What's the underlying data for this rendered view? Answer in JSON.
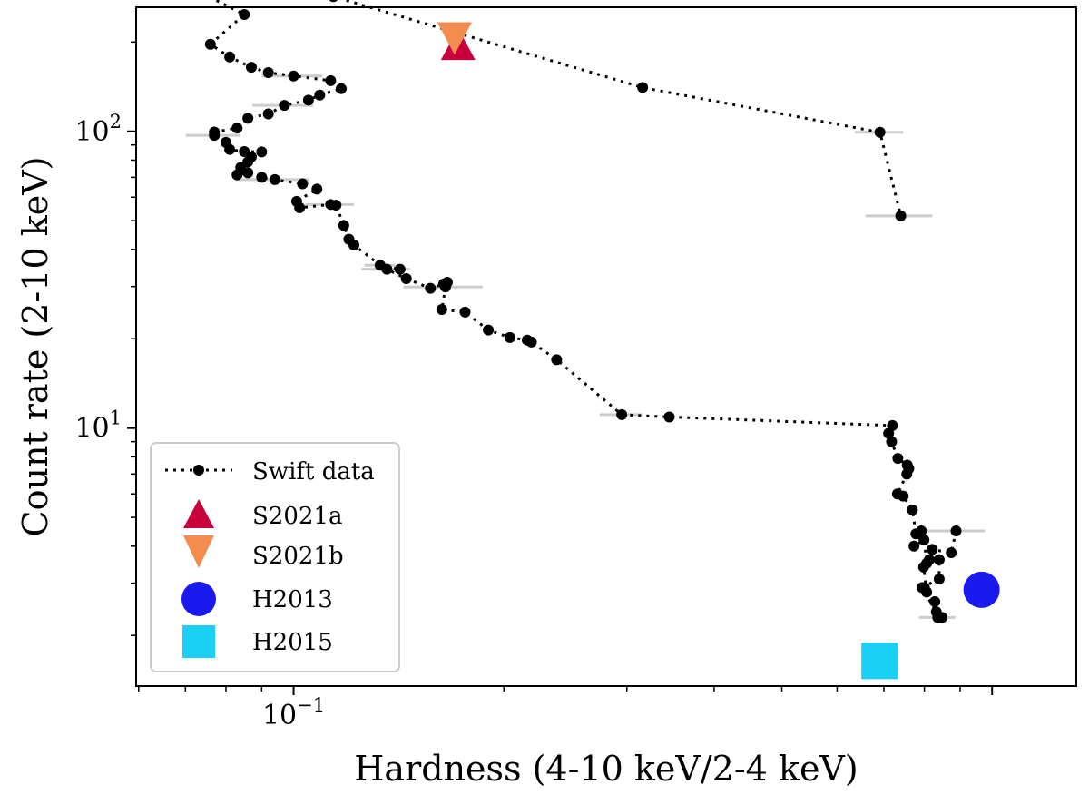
{
  "chart_data": {
    "type": "scatter",
    "xlabel": "Hardness (4-10 keV/2-4 keV)",
    "ylabel": "Count rate (2-10 keV)",
    "x_scale": "log",
    "y_scale": "log",
    "xlim": [
      0.0595,
      1.32
    ],
    "ylim": [
      1.35,
      262
    ],
    "grid": false,
    "legend_position": "lower-left",
    "x_ticks": [
      {
        "value": 0.1,
        "label": "10",
        "exp": "−1"
      }
    ],
    "y_ticks": [
      {
        "value": 10,
        "label": "10",
        "exp": "1"
      },
      {
        "value": 100,
        "label": "10",
        "exp": "2"
      }
    ],
    "series": [
      {
        "name": "Swift data",
        "color": "#000000",
        "line": "dotted",
        "x": [
          0.888,
          0.874,
          0.821,
          0.84,
          0.84,
          0.794,
          0.832,
          0.836,
          0.848,
          0.828,
          0.8,
          0.806,
          0.798,
          0.813,
          0.806,
          0.799,
          0.773,
          0.792,
          0.778,
          0.769,
          0.746,
          0.732,
          0.755,
          0.76,
          0.756,
          0.733,
          0.718,
          0.711,
          0.72,
          0.345,
          0.295,
          0.238,
          0.219,
          0.216,
          0.204,
          0.19,
          0.176,
          0.163,
          0.165,
          0.166,
          0.164,
          0.157,
          0.145,
          0.136,
          0.142,
          0.133,
          0.122,
          0.12,
          0.118,
          0.115,
          0.113,
          0.102,
          0.101,
          0.108,
          0.103,
          0.094,
          0.09,
          0.086,
          0.083,
          0.084,
          0.086,
          0.087,
          0.09,
          0.085,
          0.081,
          0.08,
          0.077,
          0.077,
          0.083,
          0.086,
          0.092,
          0.097,
          0.105,
          0.109,
          0.117,
          0.113,
          0.1,
          0.092,
          0.087,
          0.081,
          0.076,
          0.085,
          0.074,
          0.114,
          0.316,
          0.691,
          0.74
        ],
        "y": [
          4.5,
          3.8,
          3.9,
          3.6,
          3.1,
          2.9,
          2.4,
          2.3,
          2.3,
          2.6,
          2.9,
          2.8,
          3.4,
          3.6,
          3.5,
          4.2,
          4.0,
          4.5,
          4.4,
          5.3,
          5.9,
          6.0,
          7.0,
          7.3,
          7.5,
          7.9,
          9.0,
          9.6,
          10.2,
          10.9,
          11.1,
          17.0,
          19.5,
          19.8,
          20.2,
          21.4,
          24.6,
          25.1,
          29.9,
          31.0,
          30.6,
          29.6,
          31.9,
          34.3,
          34.3,
          35.4,
          41.4,
          43.3,
          48.2,
          56.4,
          56.7,
          55.3,
          58.1,
          63.9,
          66.6,
          68.8,
          70.0,
          72.5,
          71.4,
          75.6,
          78.9,
          82.0,
          85.3,
          85.5,
          86.9,
          91.8,
          97.0,
          99.5,
          102.6,
          110.7,
          114.5,
          122.3,
          127.4,
          132.5,
          139.3,
          148.2,
          153.7,
          157.8,
          164.4,
          178.1,
          196.6,
          247.6,
          291.9,
          284.7,
          140.6,
          99.3,
          51.9
        ]
      },
      {
        "name": "S2021a",
        "color": "#c8003c",
        "marker": "triangle-up",
        "x": [
          0.172
        ],
        "y": [
          192
        ]
      },
      {
        "name": "S2021b",
        "color": "#f28c4f",
        "marker": "triangle-down",
        "x": [
          0.17
        ],
        "y": [
          207
        ]
      },
      {
        "name": "H2013",
        "color": "#1a1aee",
        "marker": "circle",
        "x": [
          0.966
        ],
        "y": [
          2.85
        ]
      },
      {
        "name": "H2015",
        "color": "#1ad0f5",
        "marker": "square",
        "x": [
          0.69
        ],
        "y": [
          1.64
        ]
      }
    ]
  }
}
